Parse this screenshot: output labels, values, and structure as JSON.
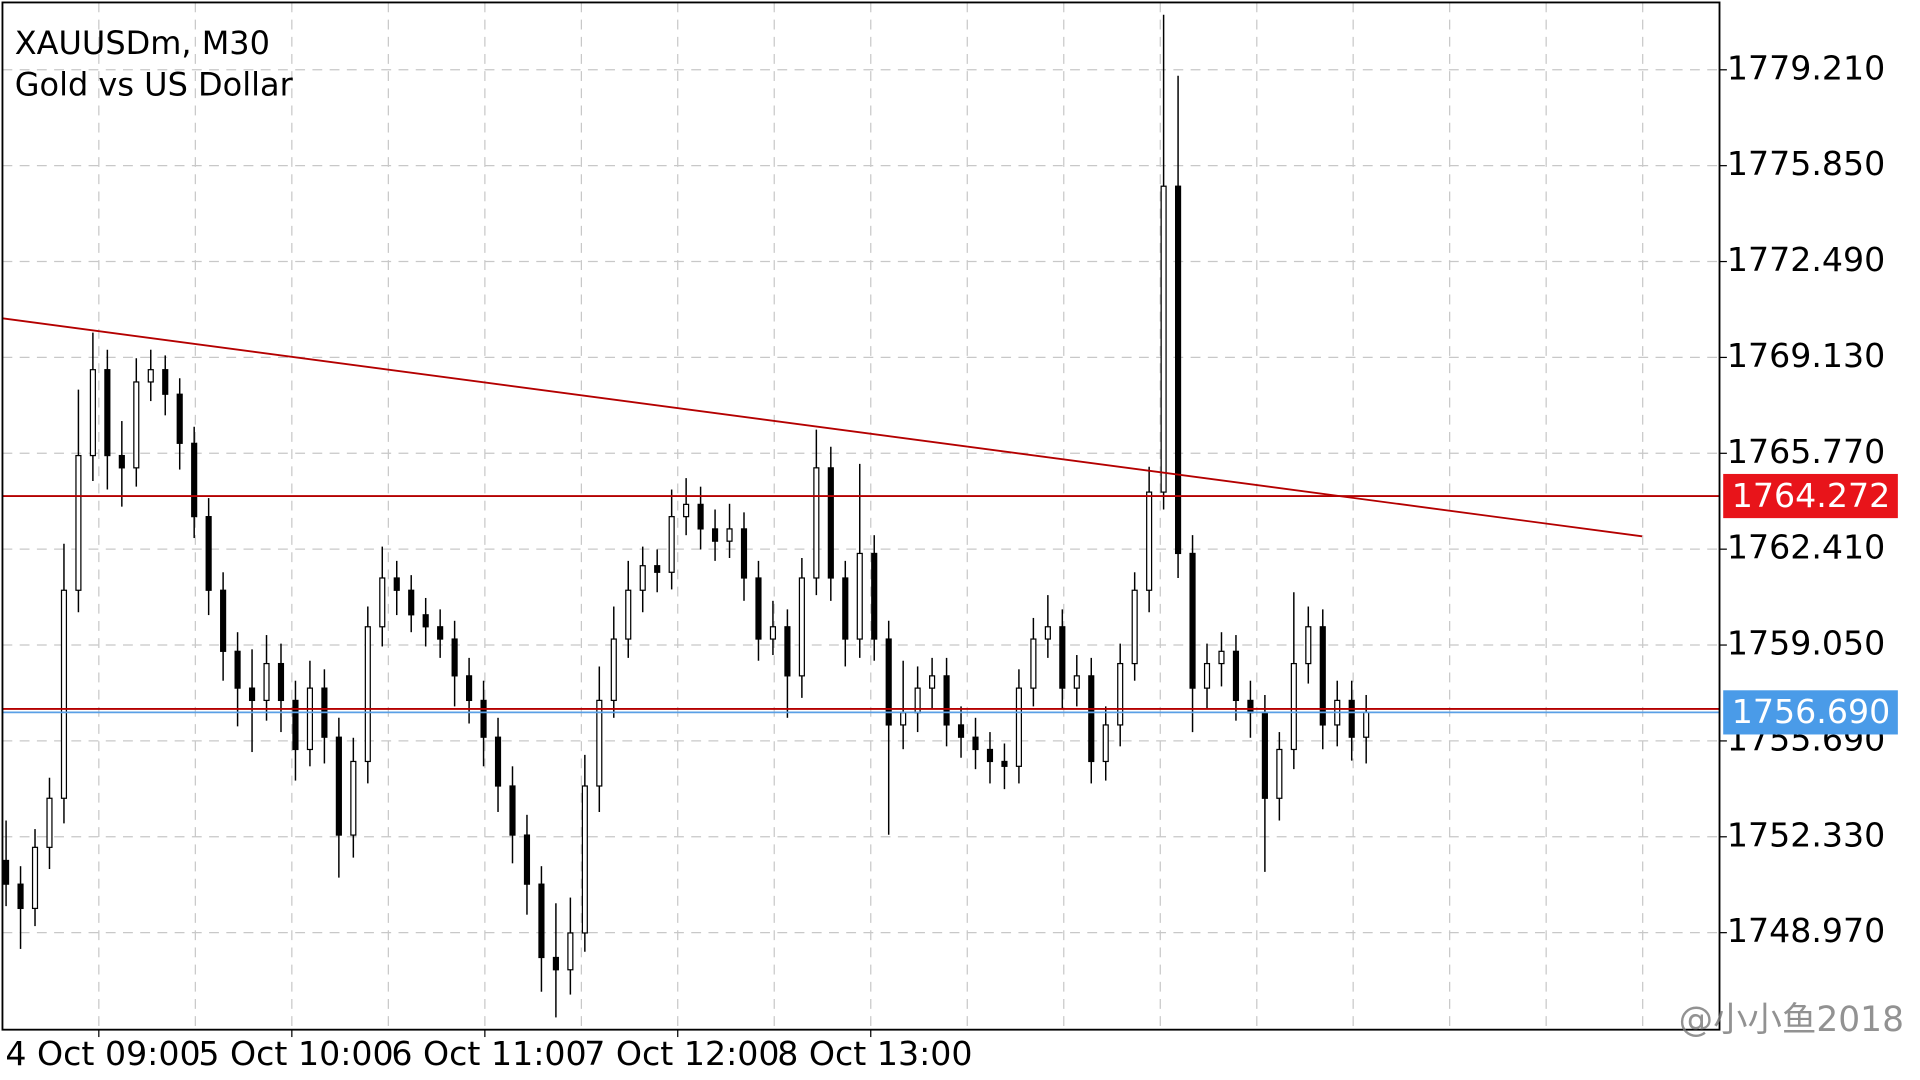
{
  "chart_data": {
    "type": "candlestick",
    "title": "XAUUSDm, M30",
    "subtitle": "Gold vs US Dollar",
    "watermark": "@小小鱼2018",
    "xlim": [
      -0.25,
      118.42
    ],
    "ylim": [
      1745.57,
      1781.57
    ],
    "grid": true,
    "xgrid": [
      6.41,
      13.08,
      19.75,
      26.42,
      33.09,
      39.76,
      46.42,
      53.09,
      59.76,
      66.43,
      73.1,
      79.77,
      86.44,
      93.1,
      99.77,
      106.44,
      113.11
    ],
    "xticks": [
      {
        "value": 6.41,
        "label": "4 Oct 09:00"
      },
      {
        "value": 19.75,
        "label": "5 Oct 10:00"
      },
      {
        "value": 33.09,
        "label": "6 Oct 11:00"
      },
      {
        "value": 46.42,
        "label": "7 Oct 12:00"
      },
      {
        "value": 59.76,
        "label": "8 Oct 13:00"
      }
    ],
    "yticks": [
      {
        "value": 1779.21,
        "label": "1779.210"
      },
      {
        "value": 1775.85,
        "label": "1775.850"
      },
      {
        "value": 1772.49,
        "label": "1772.490"
      },
      {
        "value": 1769.13,
        "label": "1769.130"
      },
      {
        "value": 1765.77,
        "label": "1765.770"
      },
      {
        "value": 1762.41,
        "label": "1762.410"
      },
      {
        "value": 1759.05,
        "label": "1759.050"
      },
      {
        "value": 1755.69,
        "label": "1755.690"
      },
      {
        "value": 1752.33,
        "label": "1752.330"
      },
      {
        "value": 1748.97,
        "label": "1748.970"
      }
    ],
    "open": [
      1751.5,
      1750.67,
      1749.82,
      1751.96,
      1753.68,
      1760.97,
      1765.69,
      1768.7,
      1765.69,
      1765.26,
      1768.27,
      1768.7,
      1767.84,
      1766.12,
      1763.55,
      1760.97,
      1758.83,
      1757.54,
      1757.11,
      1758.4,
      1757.11,
      1755.39,
      1757.54,
      1755.82,
      1752.39,
      1754.97,
      1759.69,
      1761.4,
      1760.97,
      1760.11,
      1759.69,
      1759.26,
      1757.97,
      1757.11,
      1755.82,
      1754.11,
      1752.39,
      1750.67,
      1748.1,
      1747.67,
      1748.96,
      1754.11,
      1757.11,
      1759.26,
      1760.97,
      1761.83,
      1761.6,
      1763.55,
      1763.98,
      1763.12,
      1762.69,
      1763.12,
      1761.4,
      1759.26,
      1759.69,
      1757.97,
      1761.4,
      1765.26,
      1761.4,
      1759.26,
      1762.26,
      1759.26,
      1756.25,
      1756.68,
      1757.54,
      1757.97,
      1756.25,
      1755.82,
      1755.39,
      1754.97,
      1754.8,
      1757.54,
      1759.26,
      1759.69,
      1757.54,
      1757.97,
      1754.97,
      1756.25,
      1758.4,
      1760.97,
      1764.41,
      1775.13,
      1762.26,
      1757.54,
      1758.4,
      1758.83,
      1757.11,
      1756.68,
      1753.68,
      1755.39,
      1758.4,
      1759.69,
      1756.25,
      1757.11,
      1755.82
    ],
    "high": [
      1752.9,
      1751.3,
      1752.6,
      1754.4,
      1762.6,
      1768.0,
      1770.0,
      1769.4,
      1766.9,
      1769.1,
      1769.4,
      1769.2,
      1768.4,
      1766.7,
      1764.2,
      1761.6,
      1759.5,
      1758.9,
      1759.4,
      1759.1,
      1757.8,
      1758.5,
      1758.2,
      1756.5,
      1755.8,
      1760.4,
      1762.5,
      1762.0,
      1761.5,
      1760.7,
      1760.3,
      1759.9,
      1758.6,
      1757.8,
      1756.5,
      1754.8,
      1753.1,
      1751.3,
      1750.0,
      1750.2,
      1755.2,
      1758.3,
      1760.4,
      1762.0,
      1762.5,
      1762.4,
      1764.5,
      1764.9,
      1764.6,
      1763.8,
      1764.0,
      1763.7,
      1762.0,
      1760.6,
      1760.3,
      1762.1,
      1766.6,
      1766.0,
      1762.0,
      1765.4,
      1762.9,
      1759.9,
      1758.5,
      1758.3,
      1758.6,
      1758.6,
      1756.9,
      1756.5,
      1756.0,
      1755.6,
      1758.2,
      1760.0,
      1760.8,
      1760.3,
      1758.7,
      1758.6,
      1756.9,
      1759.1,
      1761.6,
      1765.3,
      1781.14,
      1779.0,
      1762.9,
      1759.1,
      1759.5,
      1759.4,
      1757.8,
      1757.3,
      1756.0,
      1760.9,
      1760.4,
      1760.3,
      1757.8,
      1757.8,
      1757.3
    ],
    "low": [
      1749.9,
      1748.4,
      1749.2,
      1751.2,
      1752.8,
      1760.2,
      1764.8,
      1764.5,
      1763.9,
      1764.6,
      1767.6,
      1767.1,
      1765.2,
      1762.8,
      1760.1,
      1757.8,
      1756.2,
      1755.3,
      1756.4,
      1756.0,
      1754.3,
      1754.8,
      1754.9,
      1750.9,
      1751.6,
      1754.2,
      1759.0,
      1760.1,
      1759.5,
      1759.0,
      1758.6,
      1756.9,
      1756.3,
      1754.8,
      1753.2,
      1751.4,
      1749.6,
      1746.9,
      1746.0,
      1746.8,
      1748.3,
      1753.2,
      1756.5,
      1758.6,
      1760.2,
      1760.9,
      1761.0,
      1762.9,
      1762.4,
      1762.0,
      1762.1,
      1760.6,
      1758.5,
      1758.7,
      1756.5,
      1757.2,
      1760.8,
      1760.6,
      1758.3,
      1758.6,
      1758.5,
      1752.4,
      1755.4,
      1756.0,
      1756.8,
      1755.5,
      1755.1,
      1754.7,
      1754.2,
      1754.0,
      1754.2,
      1756.9,
      1758.6,
      1756.8,
      1756.9,
      1754.2,
      1754.3,
      1755.5,
      1757.8,
      1760.2,
      1763.8,
      1761.4,
      1756.0,
      1756.8,
      1757.6,
      1756.4,
      1755.8,
      1751.1,
      1752.9,
      1754.7,
      1757.7,
      1755.4,
      1755.5,
      1755.0,
      1754.9
    ],
    "close": [
      1750.67,
      1749.82,
      1751.96,
      1753.68,
      1760.97,
      1765.69,
      1768.7,
      1765.69,
      1765.26,
      1768.27,
      1768.7,
      1767.84,
      1766.12,
      1763.55,
      1760.97,
      1758.83,
      1757.54,
      1757.11,
      1758.4,
      1757.11,
      1755.39,
      1757.54,
      1755.82,
      1752.39,
      1754.97,
      1759.69,
      1761.4,
      1760.97,
      1760.11,
      1759.69,
      1759.26,
      1757.97,
      1757.11,
      1755.82,
      1754.11,
      1752.39,
      1750.67,
      1748.1,
      1747.67,
      1748.96,
      1754.11,
      1757.11,
      1759.26,
      1760.97,
      1761.83,
      1761.6,
      1763.55,
      1763.98,
      1763.12,
      1762.69,
      1763.12,
      1761.4,
      1759.26,
      1759.69,
      1757.97,
      1761.4,
      1765.26,
      1761.4,
      1759.26,
      1762.26,
      1759.26,
      1756.25,
      1756.68,
      1757.54,
      1757.97,
      1756.25,
      1755.82,
      1755.39,
      1754.97,
      1754.8,
      1757.54,
      1759.26,
      1759.69,
      1757.54,
      1757.97,
      1754.97,
      1756.25,
      1758.4,
      1760.97,
      1764.41,
      1775.13,
      1762.26,
      1757.54,
      1758.4,
      1758.83,
      1757.11,
      1756.68,
      1753.68,
      1755.39,
      1758.4,
      1759.69,
      1756.25,
      1757.11,
      1755.82,
      1756.69
    ],
    "trendline": {
      "color": "#b40000",
      "from": [
        -0.25,
        1770.5
      ],
      "to": [
        113.07,
        1762.86
      ]
    },
    "levels": [
      {
        "price": 1764.272,
        "color": "#b40000",
        "box_color": "#e8141a"
      },
      {
        "price": 1756.81,
        "color": "#b40000"
      },
      {
        "price": 1756.69,
        "label": "1756.690",
        "color": "#5aa0e6",
        "box_color": "#4a9be8"
      }
    ]
  }
}
